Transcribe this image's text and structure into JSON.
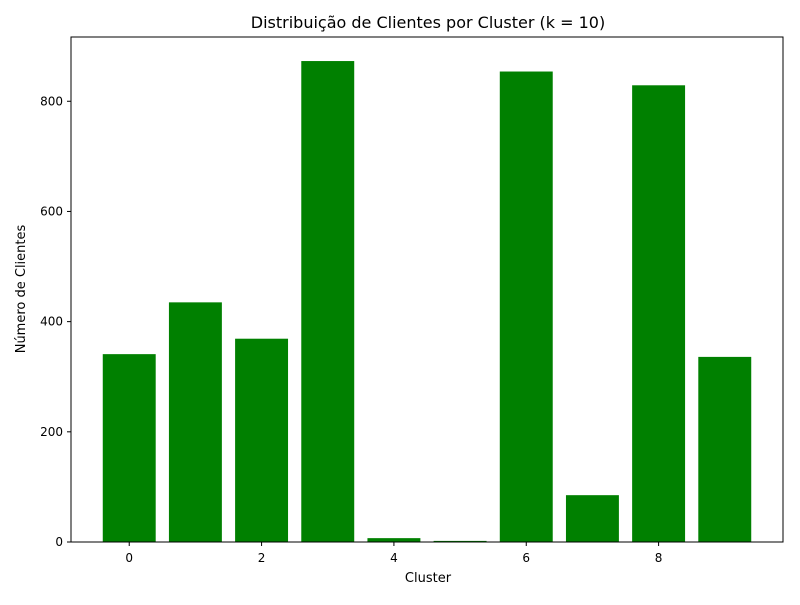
{
  "chart_data": {
    "type": "bar",
    "title": "Distribuição de Clientes por Cluster (k = 10)",
    "xlabel": "Cluster",
    "ylabel": "Número de Clientes",
    "categories": [
      "0",
      "1",
      "2",
      "3",
      "4",
      "5",
      "6",
      "7",
      "8",
      "9"
    ],
    "values": [
      341,
      435,
      369,
      873,
      7,
      2,
      854,
      85,
      829,
      336
    ],
    "xticks": [
      "0",
      "2",
      "4",
      "6",
      "8"
    ],
    "xtick_values": [
      0,
      2,
      4,
      6,
      8
    ],
    "yticks": [
      "0",
      "200",
      "400",
      "600",
      "800"
    ],
    "ytick_values": [
      0,
      200,
      400,
      600,
      800
    ],
    "xlim": [
      -0.88,
      9.88
    ],
    "ylim": [
      0,
      916.65
    ],
    "bar_width": 0.8,
    "bar_color": "#008000",
    "grid": false,
    "legend": "none"
  }
}
